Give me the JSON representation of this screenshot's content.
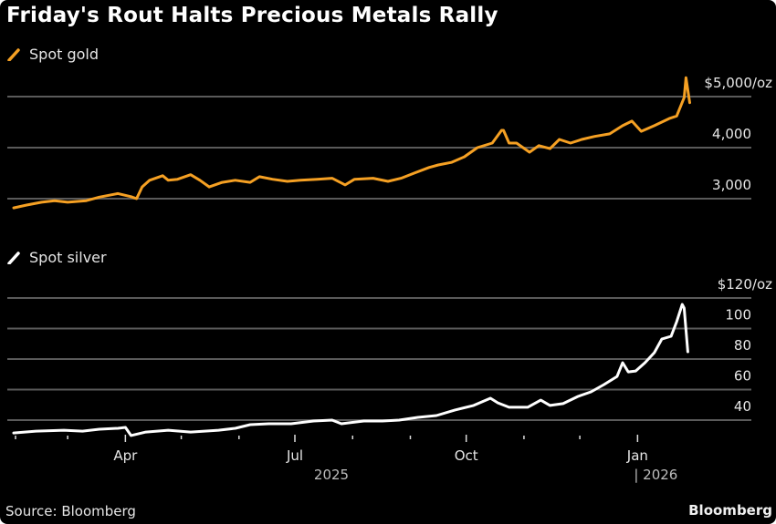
{
  "title": "Friday's Rout Halts Precious Metals Rally",
  "source": "Source: Bloomberg",
  "brand": "Bloomberg",
  "colors": {
    "background": "#000000",
    "gold": "#f5a023",
    "silver": "#ffffff",
    "grid": "#5a5a5a",
    "text": "#e6e6e6"
  },
  "chart_data": [
    {
      "type": "line",
      "title": "Spot gold",
      "legend": "Spot gold",
      "legend_placement": "top-left",
      "ylabel": "",
      "unit": "$/oz",
      "yticks": [
        3000,
        4000,
        5000
      ],
      "ytick_labels": [
        "3,000",
        "4,000",
        "$5,000/oz"
      ],
      "ylim": [
        2700,
        5500
      ],
      "grid": true,
      "x_unit": "days since 2025-02-01",
      "x": [
        -1,
        6,
        14,
        21,
        28,
        38,
        45,
        55,
        62,
        65,
        68,
        72,
        79,
        82,
        87,
        94,
        99,
        104,
        111,
        118,
        126,
        131,
        138,
        146,
        153,
        162,
        170,
        177,
        182,
        192,
        200,
        207,
        214,
        214,
        222,
        227,
        234,
        241,
        248,
        256,
        261,
        262,
        265,
        269,
        276,
        281,
        287,
        292,
        298,
        304,
        311,
        319,
        326,
        331,
        336,
        343,
        351,
        355,
        359,
        360,
        362
      ],
      "values": [
        2820,
        2875,
        2930,
        2960,
        2930,
        2960,
        3030,
        3100,
        3040,
        3000,
        3230,
        3360,
        3450,
        3360,
        3380,
        3470,
        3360,
        3230,
        3320,
        3360,
        3320,
        3430,
        3380,
        3340,
        3360,
        3380,
        3400,
        3270,
        3380,
        3400,
        3340,
        3400,
        3500,
        3500,
        3610,
        3660,
        3710,
        3820,
        4000,
        4090,
        4340,
        4340,
        4090,
        4090,
        3910,
        4040,
        3980,
        4160,
        4090,
        4160,
        4220,
        4270,
        4430,
        4520,
        4320,
        4430,
        4570,
        4620,
        4980,
        5370,
        4880
      ]
    },
    {
      "type": "line",
      "title": "Spot silver",
      "legend": "Spot silver",
      "legend_placement": "top-left",
      "ylabel": "",
      "unit": "$/oz",
      "yticks": [
        40,
        60,
        80,
        100,
        120
      ],
      "ytick_labels": [
        "40",
        "60",
        "80",
        "100",
        "$120/oz"
      ],
      "ylim": [
        28,
        125
      ],
      "grid": true,
      "x_unit": "days since 2025-02-01",
      "x": [
        -1,
        11,
        26,
        36,
        45,
        55,
        59,
        62,
        70,
        82,
        94,
        109,
        118,
        126,
        136,
        148,
        160,
        170,
        175,
        187,
        197,
        206,
        216,
        226,
        236,
        246,
        255,
        259,
        265,
        275,
        282,
        287,
        294,
        302,
        309,
        316,
        323,
        326,
        329,
        333,
        338,
        343,
        347,
        352,
        355,
        358,
        359,
        361
      ],
      "values": [
        31.6,
        32.8,
        33.4,
        32.8,
        34.0,
        34.6,
        35.2,
        29.9,
        32.2,
        33.4,
        32.2,
        33.4,
        34.6,
        37.0,
        37.6,
        37.6,
        39.4,
        40.0,
        37.6,
        39.4,
        39.4,
        40.0,
        41.8,
        43.0,
        46.6,
        49.6,
        54.3,
        51.3,
        48.4,
        48.4,
        53.1,
        49.6,
        50.8,
        55.5,
        58.5,
        63.3,
        68.6,
        77.6,
        71.6,
        72.2,
        77.6,
        84.2,
        93.1,
        94.9,
        104.5,
        115.8,
        113.4,
        84.8
      ]
    }
  ],
  "x_axis": {
    "range_days": [
      -2,
      363
    ],
    "ticks_days": [
      0,
      28,
      59,
      89,
      120,
      150,
      181,
      212,
      242,
      273,
      303,
      334
    ],
    "major_labels": [
      {
        "day": 59,
        "label": "Apr"
      },
      {
        "day": 150,
        "label": "Jul"
      },
      {
        "day": 242,
        "label": "Oct"
      },
      {
        "day": 334,
        "label": "Jan"
      }
    ],
    "year_labels": [
      {
        "day": 150,
        "label": "2025"
      },
      {
        "day": 334,
        "label": "| 2026"
      }
    ]
  }
}
